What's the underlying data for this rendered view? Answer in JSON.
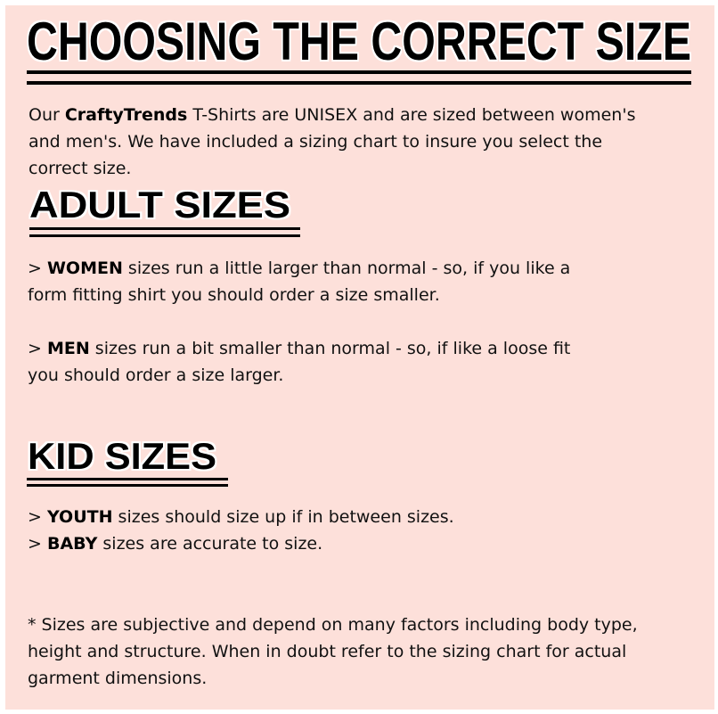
{
  "title": "CHOOSING THE CORRECT SIZE",
  "intro": {
    "line1_pre": "Our ",
    "brand": "CraftyTrends",
    "line1_post": " T-Shirts are UNISEX and are sized between women's",
    "line2": "and men's.  We have included a sizing chart to insure you select the",
    "line3": "correct size."
  },
  "adult": {
    "heading": "ADULT SIZES",
    "women": {
      "marker": "> ",
      "label": "WOMEN",
      "line1": " sizes run a little larger than normal - so, if you like a",
      "line2": "form fitting shirt you should order a size smaller."
    },
    "men": {
      "marker": "> ",
      "label": "MEN",
      "line1": " sizes run a bit smaller than normal - so, if like a loose fit",
      "line2": "you should order a size larger."
    }
  },
  "kid": {
    "heading": "KID SIZES",
    "youth": {
      "marker": "> ",
      "label": "YOUTH",
      "text": " sizes should size up if in between sizes."
    },
    "baby": {
      "marker": "> ",
      "label": "BABY",
      "text": " sizes are accurate to size."
    }
  },
  "footnote": {
    "line1": "* Sizes are subjective and depend on many factors including body type,",
    "line2": "height and structure.  When in doubt refer to the sizing chart for actual",
    "line3": "garment dimensions."
  },
  "colors": {
    "background": "#fde0da",
    "text": "#111111"
  }
}
